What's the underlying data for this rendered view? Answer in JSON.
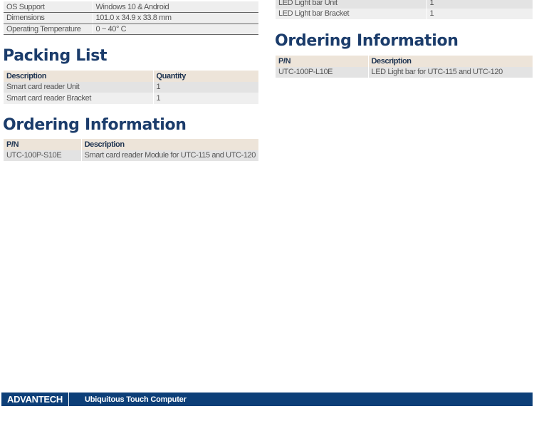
{
  "specifications": [
    {
      "label": "OS Support",
      "value": "Windows 10 & Android"
    },
    {
      "label": "Dimensions",
      "value": "101.0 x 34.9 x 33.8 mm"
    },
    {
      "label": "Operating Temperature",
      "value": "0 ~ 40° C"
    }
  ],
  "left": {
    "packing": {
      "title": "Packing List",
      "headers": [
        "Description",
        "Quantity"
      ],
      "rows": [
        [
          "Smart card reader Unit",
          "1"
        ],
        [
          "Smart card reader Bracket",
          "1"
        ]
      ]
    },
    "ordering": {
      "title": "Ordering Information",
      "headers": [
        "P/N",
        "Description"
      ],
      "rows": [
        [
          "UTC-100P-S10E",
          "Smart card reader Module for UTC-115 and UTC-120"
        ]
      ]
    }
  },
  "right": {
    "packing_rows": [
      [
        "LED Light bar Unit",
        "1"
      ],
      [
        "LED Light bar Bracket",
        "1"
      ]
    ],
    "ordering": {
      "title": "Ordering Information",
      "headers": [
        "P/N",
        "Description"
      ],
      "rows": [
        [
          "UTC-100P-L10E",
          "LED Light bar for UTC-115 and UTC-120"
        ]
      ]
    }
  },
  "footer": {
    "logo": "ADVANTECH",
    "title": "Ubiquitous Touch Computer",
    "color": "#0d3f78"
  }
}
